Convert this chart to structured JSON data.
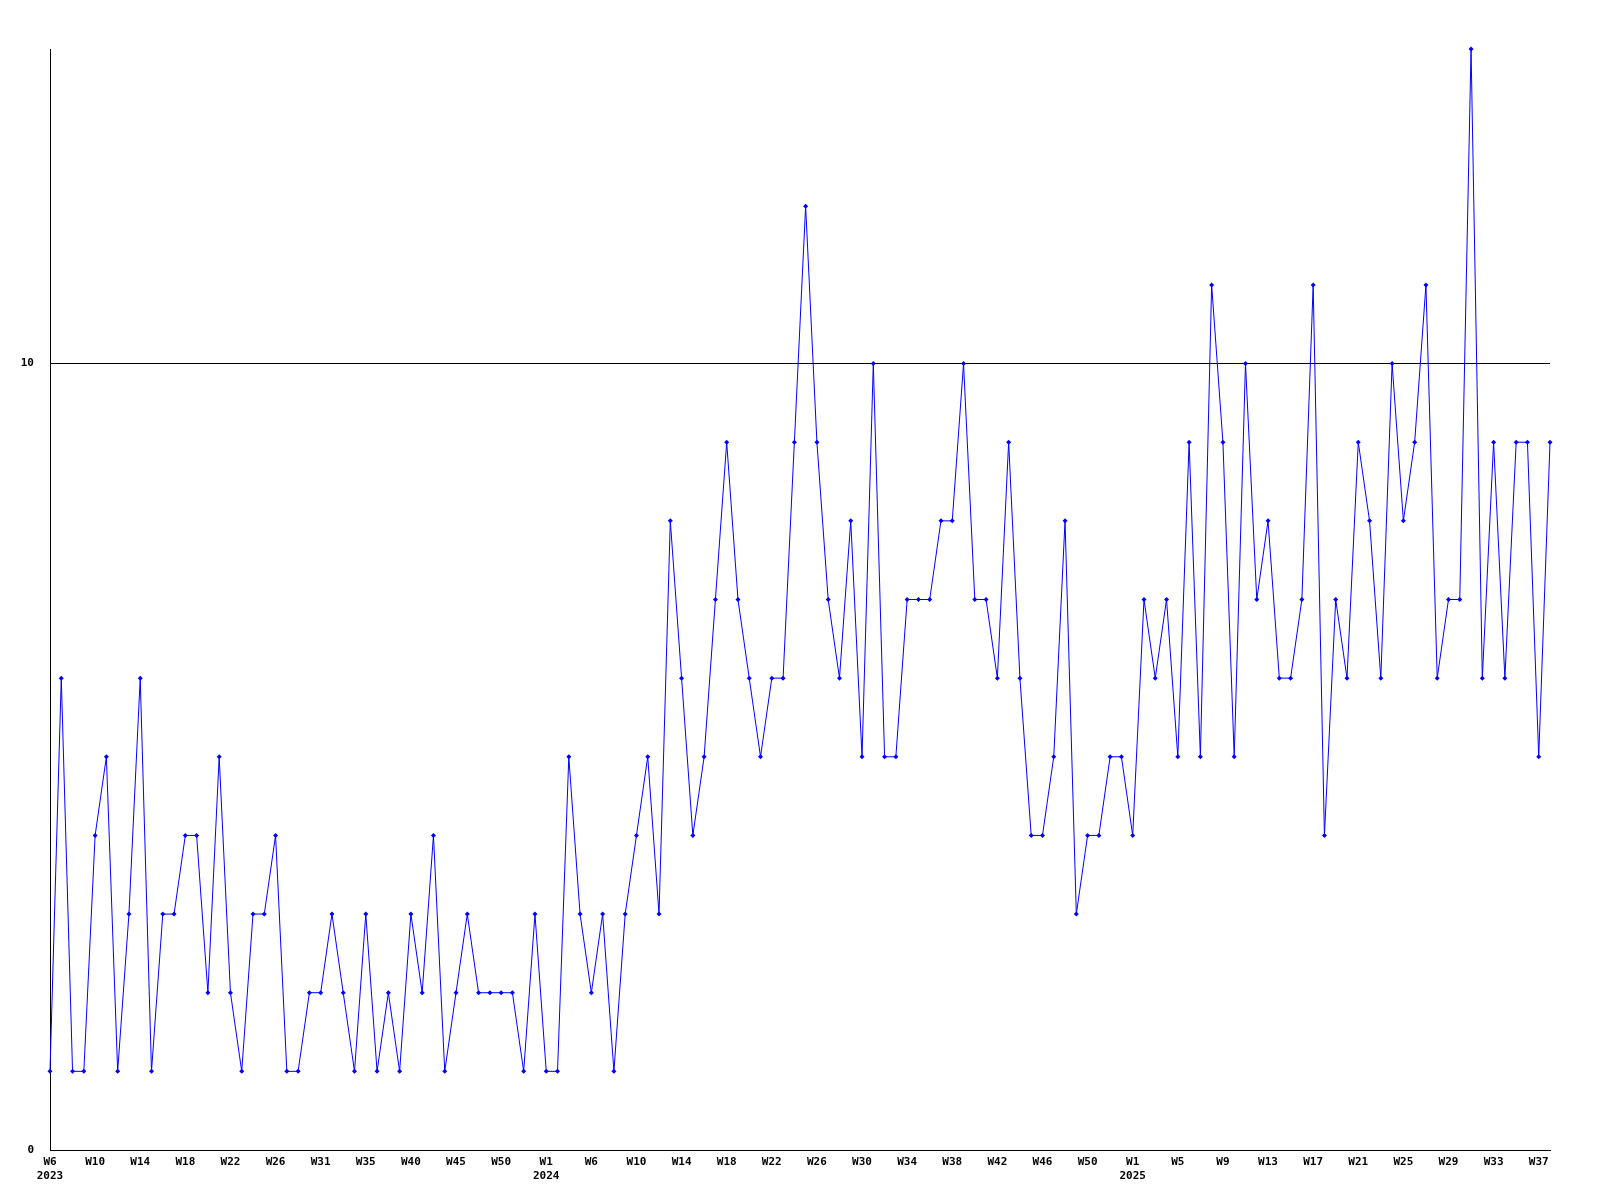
{
  "chart_data": {
    "type": "line",
    "categories": [
      "W6\n2023",
      null,
      null,
      null,
      "W10",
      null,
      null,
      null,
      "W14",
      null,
      null,
      null,
      "W18",
      null,
      null,
      null,
      "W22",
      null,
      null,
      null,
      "W26",
      null,
      null,
      null,
      "W31",
      null,
      null,
      null,
      "W35",
      null,
      null,
      null,
      "W40",
      null,
      null,
      null,
      "W45",
      null,
      null,
      null,
      "W50",
      null,
      null,
      null,
      "W1\n2024",
      null,
      null,
      null,
      "W6",
      null,
      null,
      null,
      "W10",
      null,
      null,
      null,
      "W14",
      null,
      null,
      null,
      "W18",
      null,
      null,
      null,
      "W22",
      null,
      null,
      null,
      "W26",
      null,
      null,
      null,
      "W30",
      null,
      null,
      null,
      "W34",
      null,
      null,
      null,
      "W38",
      null,
      null,
      null,
      "W42",
      null,
      null,
      null,
      "W46",
      null,
      null,
      null,
      "W50",
      null,
      null,
      null,
      "W1\n2025",
      null,
      null,
      null,
      "W5",
      null,
      null,
      null,
      "W9",
      null,
      null,
      null,
      "W13",
      null,
      null,
      null,
      "W17",
      null,
      null,
      null,
      "W21",
      null,
      null,
      null,
      "W25",
      null,
      null,
      null,
      "W29",
      null,
      null,
      null,
      "W33",
      null,
      null,
      null,
      "W37",
      null
    ],
    "series": [
      {
        "color": "#0000ff",
        "values": [
          1,
          6,
          1,
          1,
          4,
          5,
          1,
          3,
          6,
          1,
          3,
          3,
          4,
          4,
          2,
          5,
          2,
          1,
          3,
          3,
          4,
          1,
          1,
          2,
          2,
          3,
          2,
          1,
          3,
          1,
          2,
          1,
          3,
          2,
          4,
          1,
          2,
          3,
          2,
          2,
          2,
          2,
          1,
          3,
          1,
          1,
          5,
          3,
          2,
          3,
          1,
          3,
          4,
          5,
          3,
          8,
          6,
          4,
          5,
          7,
          9,
          7,
          6,
          5,
          6,
          6,
          9,
          12,
          9,
          7,
          6,
          8,
          5,
          10,
          5,
          5,
          7,
          7,
          7,
          8,
          8,
          10,
          7,
          7,
          6,
          9,
          6,
          4,
          4,
          5,
          8,
          3,
          4,
          4,
          5,
          5,
          4,
          7,
          6,
          7,
          5,
          9,
          5,
          11,
          9,
          5,
          10,
          7,
          8,
          6,
          6,
          7,
          11,
          4,
          7,
          6,
          9,
          8,
          6,
          10,
          8,
          9,
          11,
          6,
          7,
          7,
          14,
          6,
          9,
          6,
          9,
          9,
          5,
          9
        ]
      }
    ],
    "ylim": [
      0,
      14
    ],
    "yticks": [
      0,
      10
    ],
    "grid": "y",
    "legend": false,
    "marker": "diamond",
    "line_style": "solid"
  }
}
